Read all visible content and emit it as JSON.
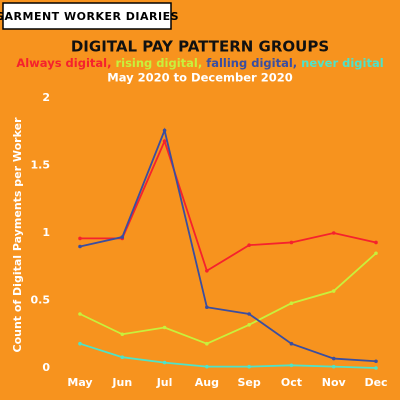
{
  "chart_data": {
    "type": "line",
    "brand": "GARMENT WORKER DIARIES",
    "title": "DIGITAL PAY PATTERN GROUPS",
    "legend_separator": ",",
    "subtitle": "May 2020 to December 2020",
    "y_label": "Count of Digital Payments per Worker",
    "categories": [
      "May",
      "Jun",
      "Jul",
      "Aug",
      "Sep",
      "Oct",
      "Nov",
      "Dec"
    ],
    "series": [
      {
        "name": "Always digital",
        "color": "#f5222d",
        "values": [
          0.96,
          0.96,
          1.68,
          0.72,
          0.91,
          0.93,
          1.0,
          0.93
        ]
      },
      {
        "name": "rising digital",
        "color": "#c8f03c",
        "values": [
          0.4,
          0.25,
          0.3,
          0.18,
          0.32,
          0.48,
          0.57,
          0.85
        ]
      },
      {
        "name": "falling digital",
        "color": "#3b4ea0",
        "values": [
          0.9,
          0.97,
          1.76,
          0.45,
          0.4,
          0.18,
          0.07,
          0.05
        ]
      },
      {
        "name": "never digital",
        "color": "#4fe3c8",
        "values": [
          0.18,
          0.08,
          0.04,
          0.01,
          0.01,
          0.02,
          0.01,
          0.0
        ]
      }
    ],
    "ylim": [
      0,
      2
    ],
    "yticks": [
      0,
      0.5,
      1,
      1.5,
      2
    ]
  }
}
